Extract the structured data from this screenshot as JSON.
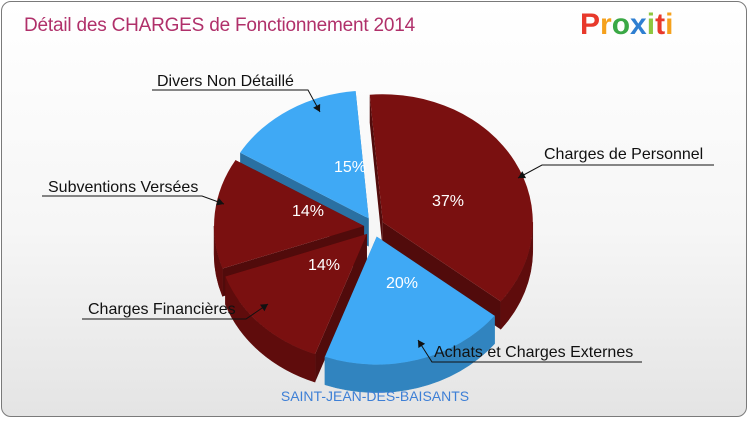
{
  "title": "Détail des CHARGES de Fonctionnement 2014",
  "logo": {
    "text": "Proxiti"
  },
  "city": "SAINT-JEAN-DES-BAISANTS",
  "chart_data": {
    "type": "pie",
    "title": "Détail des CHARGES de Fonctionnement 2014",
    "slices": [
      {
        "label": "Charges de Personnel",
        "value": 37,
        "display": "37%",
        "color": "#7a1010"
      },
      {
        "label": "Achats et Charges Externes",
        "value": 20,
        "display": "20%",
        "color": "#3fa9f5"
      },
      {
        "label": "Charges Financières",
        "value": 14,
        "display": "14%",
        "color": "#7a1010"
      },
      {
        "label": "Subventions Versées",
        "value": 14,
        "display": "14%",
        "color": "#7a1010"
      },
      {
        "label": "Divers Non Détaillé",
        "value": 15,
        "display": "15%",
        "color": "#3fa9f5"
      }
    ]
  }
}
